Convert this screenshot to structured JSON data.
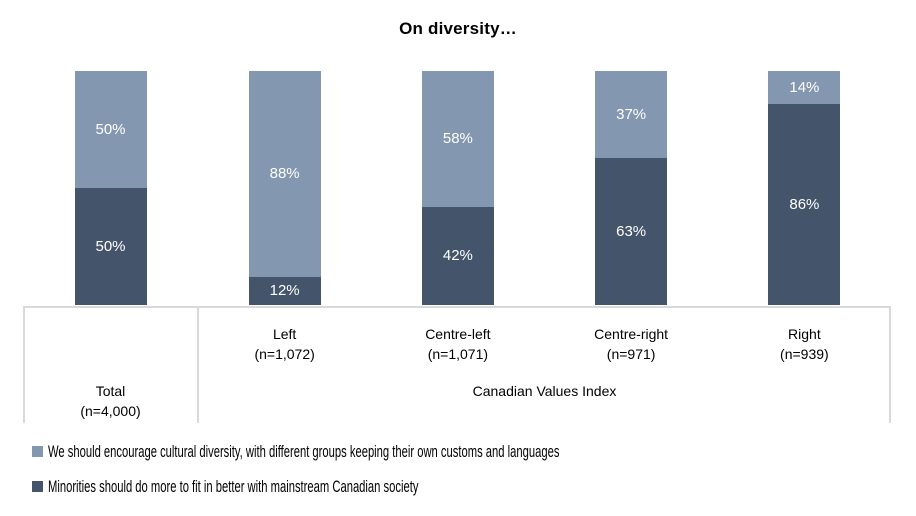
{
  "chart_data": {
    "type": "bar",
    "stacked": true,
    "title": "On diversity…",
    "value_suffix": "%",
    "ylim": [
      0,
      100
    ],
    "grid": false,
    "legend_position": "bottom-left",
    "axis": {
      "group_label": "Canadian Values Index",
      "categories": [
        {
          "label": "Total",
          "n": "(n=4,000)",
          "group": null
        },
        {
          "label": "Left",
          "n": "(n=1,072)",
          "group": "Canadian Values Index"
        },
        {
          "label": "Centre-left",
          "n": "(n=1,071)",
          "group": "Canadian Values Index"
        },
        {
          "label": "Centre-right",
          "n": "(n=971)",
          "group": "Canadian Values Index"
        },
        {
          "label": "Right",
          "n": "(n=939)",
          "group": "Canadian Values Index"
        }
      ]
    },
    "series": [
      {
        "name": "We should encourage cultural diversity, with different groups keeping their own customs and languages",
        "color": "#8497B0",
        "stack_position": "top",
        "values": [
          50,
          88,
          58,
          37,
          14
        ]
      },
      {
        "name": "Minorities should do more to fit in better with mainstream Canadian society",
        "color": "#44546A",
        "stack_position": "bottom",
        "values": [
          50,
          12,
          42,
          63,
          86
        ]
      }
    ],
    "colors": {
      "axis_line": "#D9D9D9",
      "bar_label_text": "#FFFFFF",
      "axis_label_text": "#000000"
    }
  }
}
